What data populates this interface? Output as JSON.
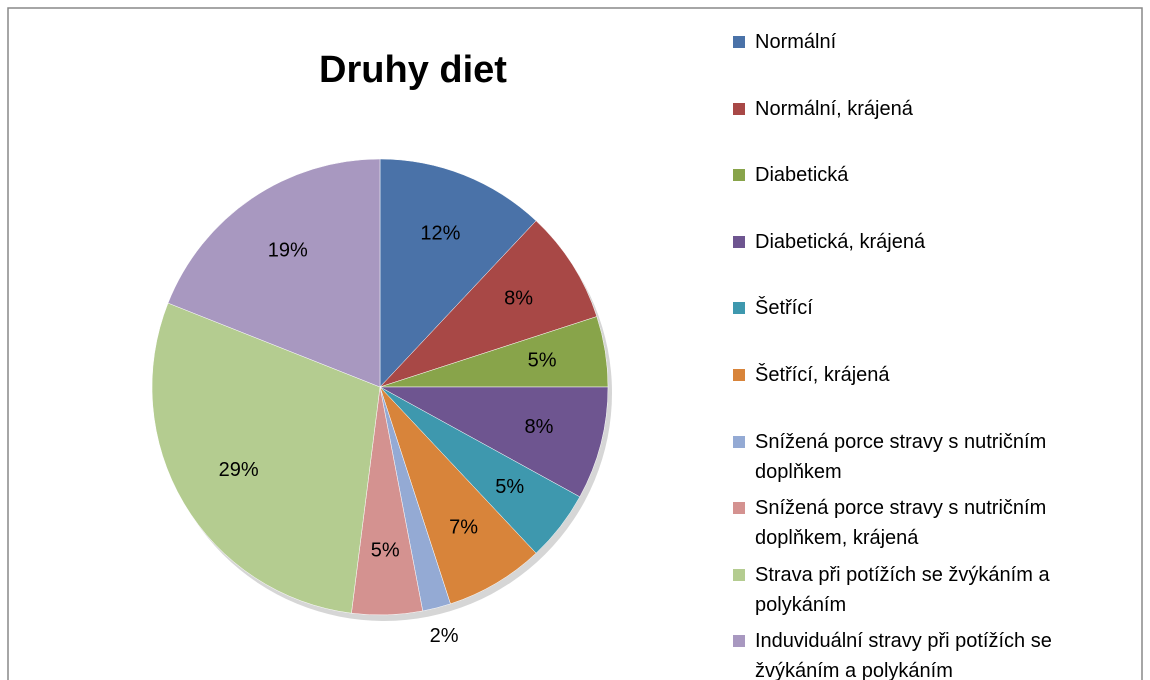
{
  "chart_data": {
    "type": "pie",
    "title": "Druhy diet",
    "categories": [
      "Normální",
      "Normální, krájená",
      "Diabetická",
      "Diabetická, krájená",
      "Šetřící",
      "Šetřící, krájená",
      "Snížená porce stravy s nutričním doplňkem",
      "Snížená porce stravy s nutričním doplňkem, krájená",
      "Strava při potížích se žvýkáním a polykáním",
      "Induviduální stravy při potížích se žvýkáním a polykáním"
    ],
    "values": [
      12,
      8,
      5,
      8,
      5,
      7,
      2,
      5,
      29,
      19
    ],
    "value_labels": [
      "12%",
      "8%",
      "5%",
      "8%",
      "5%",
      "7%",
      "2%",
      "5%",
      "29%",
      "19%"
    ],
    "colors": [
      "#4a72a8",
      "#a84846",
      "#88a44a",
      "#6e5590",
      "#3e98ae",
      "#d8843a",
      "#94aad4",
      "#d49290",
      "#b4cc90",
      "#a898c0"
    ],
    "legend": "right"
  }
}
